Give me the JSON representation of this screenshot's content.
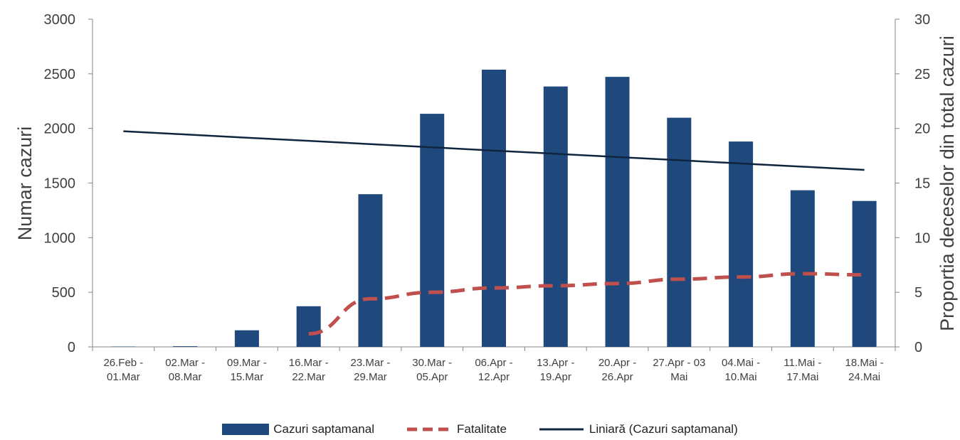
{
  "chart_data": {
    "type": "bar",
    "ylabel_left": "Numar cazuri",
    "ylabel_right": "Proportia deceselor din total cazuri",
    "ylim_left": [
      0,
      3000
    ],
    "ylim_right": [
      0,
      30
    ],
    "yticks_left": [
      "0",
      "500",
      "1000",
      "1500",
      "2000",
      "2500",
      "3000"
    ],
    "yticks_right": [
      "0",
      "5",
      "10",
      "15",
      "20",
      "25",
      "30"
    ],
    "categories": [
      [
        "26.Feb -",
        "01.Mar"
      ],
      [
        "02.Mar -",
        "08.Mar"
      ],
      [
        "09.Mar -",
        "15.Mar"
      ],
      [
        "16.Mar -",
        "22.Mar"
      ],
      [
        "23.Mar -",
        "29.Mar"
      ],
      [
        "30.Mar -",
        "05.Apr"
      ],
      [
        "06.Apr -",
        "12.Apr"
      ],
      [
        "13.Apr -",
        "19.Apr"
      ],
      [
        "20.Apr -",
        "26.Apr"
      ],
      [
        "27.Apr - 03",
        "Mai"
      ],
      [
        "04.Mai -",
        "10.Mai"
      ],
      [
        "11.Mai -",
        "17.Mai"
      ],
      [
        "18.Mai -",
        "24.Mai"
      ]
    ],
    "series": [
      {
        "name": "Cazuri saptamanal",
        "type": "bar",
        "axis": "left",
        "color": "#1F497D",
        "values": [
          3,
          6,
          152,
          372,
          1398,
          2134,
          2538,
          2384,
          2472,
          2098,
          1880,
          1434,
          1336
        ]
      },
      {
        "name": "Fatalitate",
        "type": "line",
        "style": "dashed",
        "axis": "right",
        "color": "#C0504D",
        "values": [
          null,
          null,
          null,
          1.2,
          4.4,
          5.0,
          5.4,
          5.6,
          5.8,
          6.2,
          6.4,
          6.7,
          6.6
        ]
      },
      {
        "name": "Liniară (Cazuri saptamanal)",
        "type": "line",
        "axis": "left",
        "color": "#0F243E",
        "values": [
          1974,
          1945,
          1915,
          1886,
          1856,
          1827,
          1797,
          1768,
          1738,
          1709,
          1679,
          1650,
          1620
        ]
      }
    ],
    "legend_position": "bottom",
    "grid": false
  }
}
